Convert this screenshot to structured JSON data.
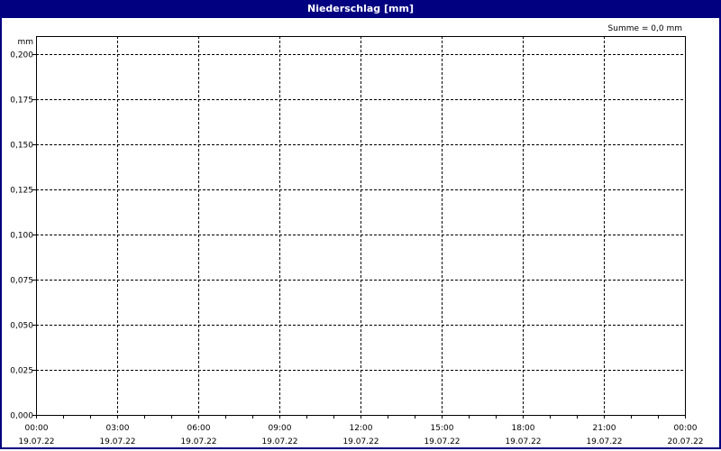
{
  "window": {
    "title": "Niederschlag [mm]"
  },
  "chart_data": {
    "type": "bar",
    "title": "Niederschlag [mm]",
    "ylabel": "mm",
    "annotation": "Summe = 0,0 mm",
    "ylim": [
      0,
      0.21
    ],
    "y_ticks": [
      "0,000",
      "0,025",
      "0,050",
      "0,075",
      "0,100",
      "0,125",
      "0,150",
      "0,175",
      "0,200"
    ],
    "x_ticks": [
      {
        "time": "00:00",
        "date": "19.07.22"
      },
      {
        "time": "03:00",
        "date": "19.07.22"
      },
      {
        "time": "06:00",
        "date": "19.07.22"
      },
      {
        "time": "09:00",
        "date": "19.07.22"
      },
      {
        "time": "12:00",
        "date": "19.07.22"
      },
      {
        "time": "15:00",
        "date": "19.07.22"
      },
      {
        "time": "18:00",
        "date": "19.07.22"
      },
      {
        "time": "21:00",
        "date": "19.07.22"
      },
      {
        "time": "00:00",
        "date": "20.07.22"
      }
    ],
    "xlim_hours": [
      0,
      24
    ],
    "series": [
      {
        "values": []
      }
    ],
    "grid": true,
    "colors": {
      "titlebar": "#000080",
      "grid": "#000000"
    }
  }
}
